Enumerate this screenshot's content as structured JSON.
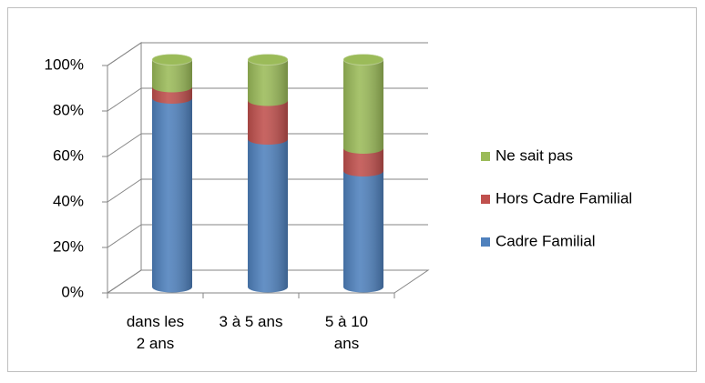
{
  "chart_data": {
    "type": "stacked_cylinder",
    "categories": [
      "dans les 2 ans",
      "3 à 5 ans",
      "5 à 10 ans"
    ],
    "series": [
      {
        "name": "Cadre Familial",
        "color": "#4f81bd",
        "values": [
          83,
          65,
          51
        ]
      },
      {
        "name": "Hors Cadre Familial",
        "color": "#c0504d",
        "values": [
          5,
          17,
          10
        ]
      },
      {
        "name": "Ne sait pas",
        "color": "#9bbb59",
        "values": [
          12,
          18,
          39
        ]
      }
    ],
    "ylim": [
      0,
      100
    ],
    "yticks": [
      {
        "value": 0,
        "label": "0%"
      },
      {
        "value": 20,
        "label": "20%"
      },
      {
        "value": 40,
        "label": "40%"
      },
      {
        "value": 60,
        "label": "60%"
      },
      {
        "value": 80,
        "label": "80%"
      },
      {
        "value": 100,
        "label": "100%"
      }
    ],
    "grid": true,
    "legend": "right"
  }
}
